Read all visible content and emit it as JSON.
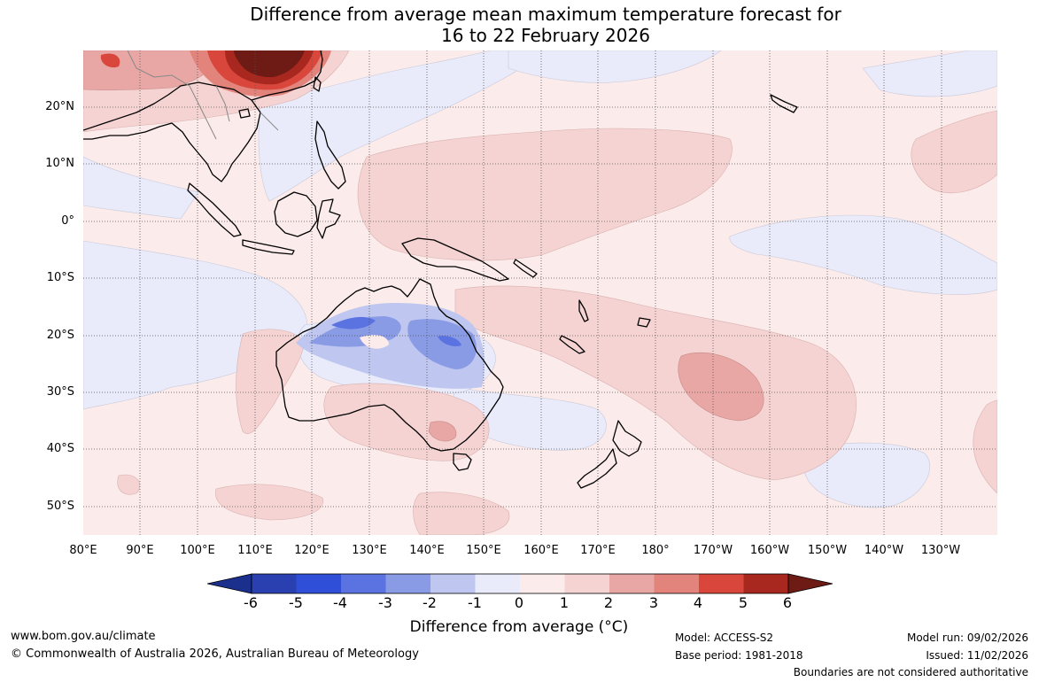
{
  "title": {
    "line1": "Difference from average mean maximum temperature forecast for",
    "line2": "16 to 22 February 2026"
  },
  "map": {
    "latitude_labels": [
      "20°N",
      "10°N",
      "0°",
      "10°S",
      "20°S",
      "30°S",
      "40°S",
      "50°S"
    ],
    "longitude_labels": [
      "80°E",
      "90°E",
      "100°E",
      "110°E",
      "120°E",
      "130°E",
      "140°E",
      "150°E",
      "160°E",
      "170°E",
      "180°",
      "170°W",
      "160°W",
      "150°W",
      "140°W",
      "130°W"
    ]
  },
  "colorbar": {
    "tick_labels": [
      "-6",
      "-5",
      "-4",
      "-3",
      "-2",
      "-1",
      "0",
      "1",
      "2",
      "3",
      "4",
      "5",
      "6"
    ],
    "colors": [
      "#1b2f8c",
      "#2a3fb0",
      "#2f4fd8",
      "#5b73e0",
      "#8a9be6",
      "#bfc7f0",
      "#e9ebfa",
      "#fbebea",
      "#f4d3d2",
      "#e8a7a4",
      "#e2837c",
      "#d9473c",
      "#a8281f",
      "#6e1a15"
    ],
    "label": "Difference from average (°C)"
  },
  "footer": {
    "website": "www.bom.gov.au/climate",
    "copyright": "© Commonwealth of Australia 2026, Australian Bureau of Meteorology",
    "model": "Model: ACCESS-S2",
    "base_period": "Base period: 1981-2018",
    "model_run": "Model run: 09/02/2026",
    "issued": "Issued: 11/02/2026",
    "disclaimer": "Boundaries are not considered authoritative"
  }
}
